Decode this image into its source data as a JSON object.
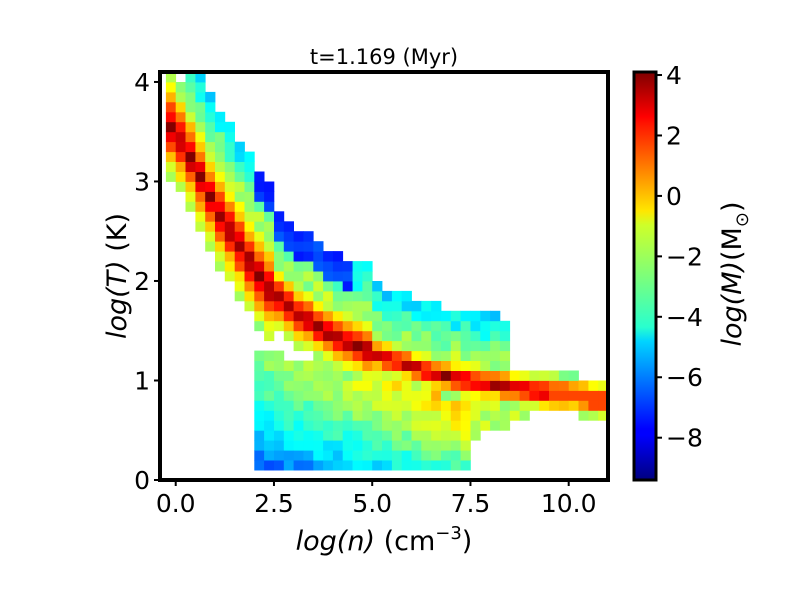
{
  "chart_data": {
    "type": "heatmap",
    "title": "t=1.169 (Myr)",
    "xlabel_main": "log(n)",
    "xlabel_unit": " (cm",
    "xlabel_sup": "−3",
    "xlabel_close": ")",
    "ylabel_main": "log(T)",
    "ylabel_unit": " (K)",
    "xlim": [
      -0.4,
      11.0
    ],
    "ylim": [
      0,
      4.1
    ],
    "xticks": [
      0.0,
      2.5,
      5.0,
      7.5,
      10.0
    ],
    "xtick_labels": [
      "0.0",
      "2.5",
      "5.0",
      "7.5",
      "10.0"
    ],
    "yticks": [
      0,
      1,
      2,
      3,
      4
    ],
    "ytick_labels": [
      "0",
      "1",
      "2",
      "3",
      "4"
    ],
    "colorbar": {
      "label_main": "log(M)",
      "label_unit": "(M",
      "label_sub": "⊙",
      "label_close": ")",
      "range": [
        -9.4,
        4.1
      ],
      "ticks": [
        4,
        2,
        0,
        -2,
        -4,
        -6,
        -8
      ],
      "tick_labels": [
        "4",
        "2",
        "0",
        "−2",
        "−4",
        "−6",
        "−8"
      ],
      "colormap": "jet"
    },
    "bin_size_x": 0.25,
    "bin_size_y": 0.1,
    "components": [
      {
        "name_hint": "hot diffuse ridge",
        "logn": [
          -0.2,
          0.3,
          0.8,
          1.3,
          1.8,
          2.3,
          3.0,
          3.8,
          4.6,
          5.4,
          6.2,
          7.0,
          7.8,
          8.6,
          9.4,
          10.2,
          10.8
        ],
        "logT_center": [
          3.6,
          3.3,
          2.9,
          2.55,
          2.25,
          1.95,
          1.7,
          1.5,
          1.35,
          1.22,
          1.12,
          1.03,
          0.98,
          0.93,
          0.88,
          0.85,
          0.8
        ],
        "peak_logM": 3.5
      },
      {
        "name_hint": "cold dense cloud",
        "logn_range": [
          2.0,
          7.4
        ],
        "logT_range": [
          0.05,
          1.3
        ],
        "peak_logM": -2.0
      }
    ]
  }
}
